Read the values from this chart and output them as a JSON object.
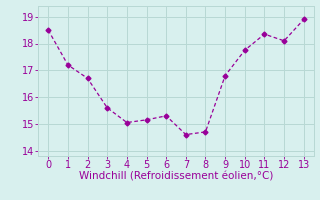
{
  "x": [
    0,
    1,
    2,
    3,
    4,
    5,
    6,
    7,
    8,
    9,
    10,
    11,
    12,
    13
  ],
  "y": [
    18.5,
    17.2,
    16.7,
    15.6,
    15.05,
    15.15,
    15.3,
    14.6,
    14.7,
    16.8,
    17.75,
    18.35,
    18.1,
    18.9
  ],
  "line_color": "#990099",
  "marker": "D",
  "marker_size": 2.5,
  "bg_color": "#d8f0ee",
  "grid_color": "#b8d8d4",
  "xlabel": "Windchill (Refroidissement éolien,°C)",
  "xlabel_color": "#990099",
  "xlabel_fontsize": 7.5,
  "tick_color": "#990099",
  "tick_fontsize": 7,
  "ylim": [
    13.8,
    19.4
  ],
  "xlim": [
    -0.5,
    13.5
  ],
  "yticks": [
    14,
    15,
    16,
    17,
    18,
    19
  ],
  "xticks": [
    0,
    1,
    2,
    3,
    4,
    5,
    6,
    7,
    8,
    9,
    10,
    11,
    12,
    13
  ]
}
